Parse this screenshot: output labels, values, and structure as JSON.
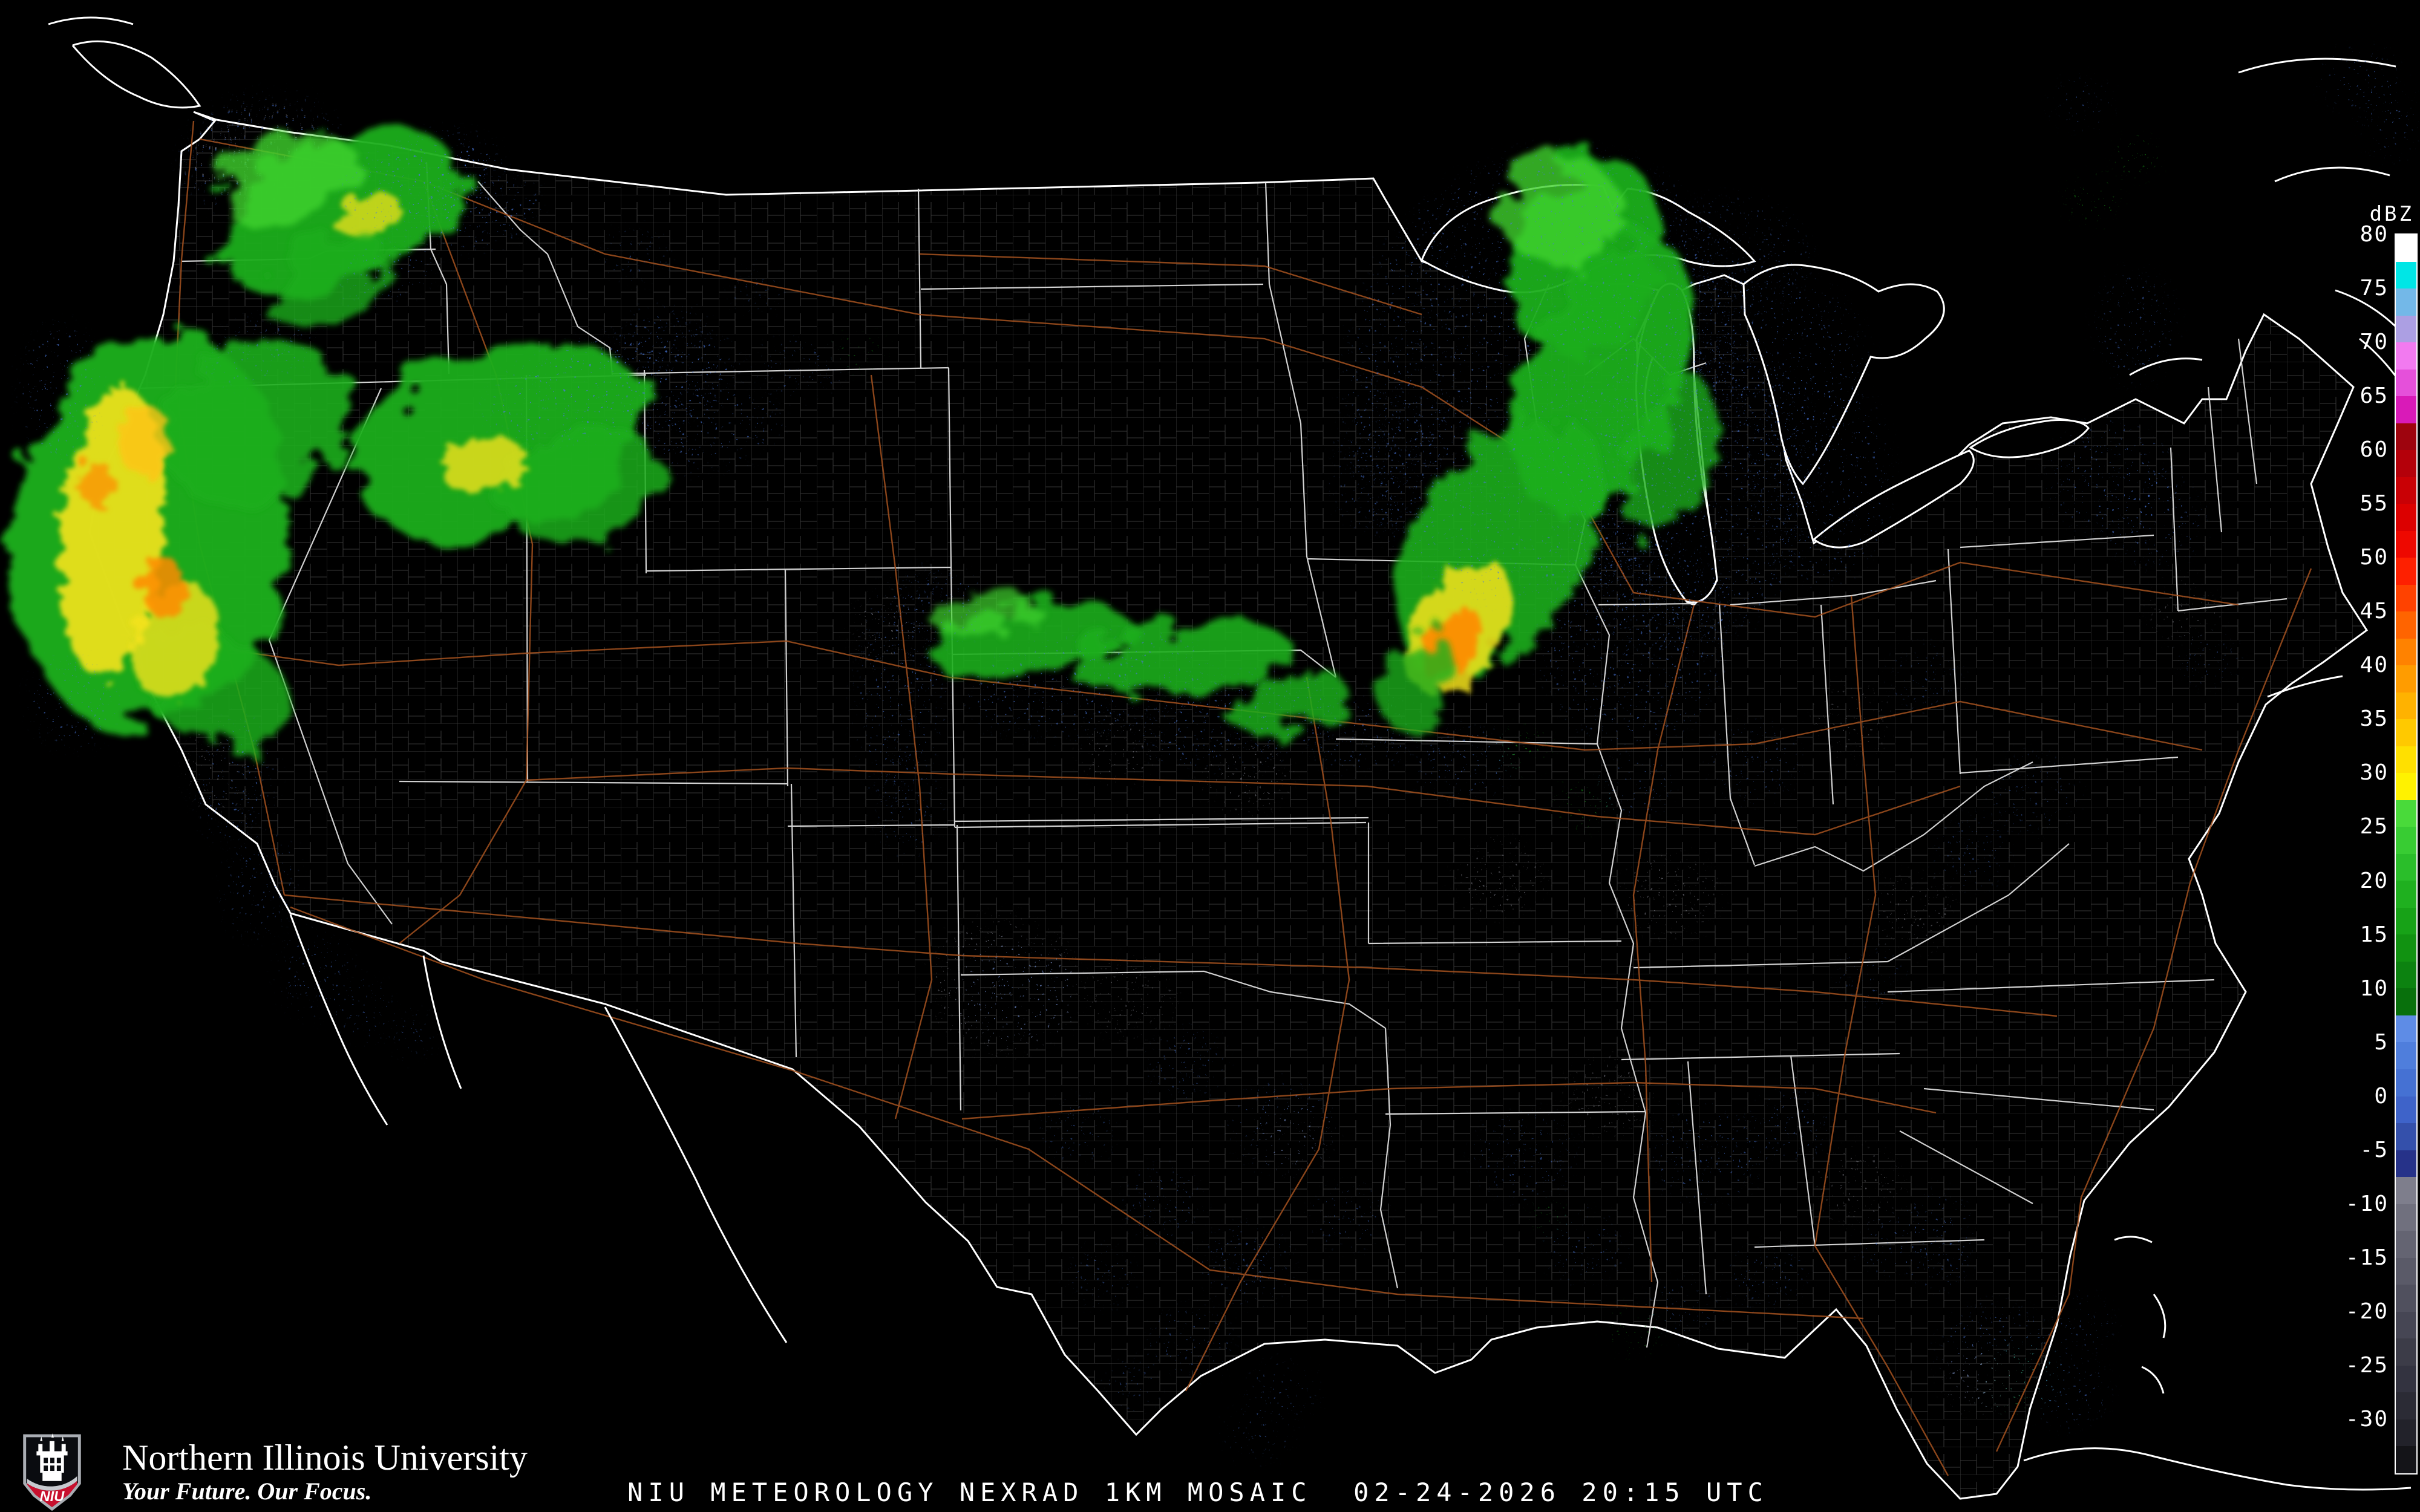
{
  "branding": {
    "university": "Northern Illinois University",
    "tagline": "Your Future. Our Focus.",
    "shield_letters": "NIU",
    "niu_red": "#c8102e",
    "shield_silver": "#a9adb3"
  },
  "caption": {
    "text": "NIU METEOROLOGY NEXRAD 1KM MOSAIC  02-24-2026 20:15 UTC"
  },
  "colorbar": {
    "title": "dBZ",
    "tick_labels": [
      "80",
      "75",
      "70",
      "65",
      "60",
      "55",
      "50",
      "45",
      "40",
      "35",
      "30",
      "25",
      "20",
      "15",
      "10",
      "5",
      "0",
      "-5",
      "-10",
      "-15",
      "-20",
      "-25",
      "-30"
    ],
    "segments": [
      "#ffffff",
      "#00e6e6",
      "#73b8e8",
      "#ac9fe3",
      "#f27af0",
      "#e550da",
      "#d91ab8",
      "#9e040e",
      "#b4000a",
      "#c90005",
      "#dc0000",
      "#ee0800",
      "#fe2000",
      "#ff4200",
      "#ff6400",
      "#ff8200",
      "#ff9c00",
      "#ffb200",
      "#ffc900",
      "#ffe000",
      "#fff200",
      "#49da3a",
      "#38cc33",
      "#2abe2a",
      "#1fb01f",
      "#17a217",
      "#119211",
      "#0c8210",
      "#08700c",
      "#5e8ce6",
      "#4f7edc",
      "#4571d3",
      "#3e63c9",
      "#3450ab",
      "#263289",
      "#7e7e8c",
      "#70707e",
      "#646472",
      "#5a5a68",
      "#50505e",
      "#464654",
      "#3c3c48",
      "#333340",
      "#2b2b35",
      "#22222a",
      "#141418"
    ]
  },
  "map": {
    "colors": {
      "coast": "#ffffff",
      "state": "#e3e3e3",
      "county": "#8b8b8b",
      "hwy": "#a3511f",
      "background": "#000000"
    },
    "palette": {
      "g": "#1fae1b",
      "bg": "#3fd32f",
      "dg": "#0d7d10",
      "y": "#f5e31c",
      "gd": "#ffc414",
      "o": "#ff8a00",
      "b": "#4a78de",
      "db": "#2c47ad",
      "lb": "#7fa5ec",
      "gy": "#8d8d99"
    },
    "echoes": [
      [
        420,
        250,
        110,
        70,
        -15,
        "gy",
        "sp",
        0.7
      ],
      [
        430,
        252,
        130,
        90,
        -15,
        "b",
        "sp",
        0.6
      ],
      [
        560,
        350,
        210,
        120,
        -25,
        "g",
        "fz",
        0.95
      ],
      [
        480,
        300,
        120,
        70,
        -20,
        "bg",
        "fz",
        0.8
      ],
      [
        610,
        355,
        55,
        32,
        -20,
        "y",
        "fz2",
        0.75
      ],
      [
        700,
        300,
        130,
        70,
        -15,
        "b",
        "sp",
        0.8
      ],
      [
        790,
        350,
        100,
        55,
        -10,
        "b",
        "sp",
        0.7
      ],
      [
        540,
        460,
        110,
        60,
        -30,
        "g",
        "fz",
        0.8
      ],
      [
        640,
        450,
        80,
        45,
        -20,
        "b",
        "sp",
        0.6
      ],
      [
        250,
        880,
        230,
        330,
        8,
        "g",
        "fz",
        0.97
      ],
      [
        420,
        700,
        160,
        130,
        -30,
        "g",
        "fz",
        0.9
      ],
      [
        350,
        1130,
        130,
        90,
        20,
        "g",
        "fz",
        0.85
      ],
      [
        185,
        880,
        85,
        240,
        5,
        "y",
        "fz2",
        0.9
      ],
      [
        290,
        1060,
        70,
        100,
        15,
        "y",
        "fz2",
        0.8
      ],
      [
        240,
        730,
        45,
        60,
        0,
        "gd",
        "fz2",
        0.8
      ],
      [
        270,
        970,
        35,
        50,
        0,
        "o",
        "fz2",
        0.85
      ],
      [
        160,
        800,
        28,
        40,
        0,
        "o",
        "fz2",
        0.7
      ],
      [
        100,
        650,
        60,
        110,
        0,
        "b",
        "sp",
        0.6
      ],
      [
        120,
        1160,
        70,
        70,
        0,
        "b",
        "sp",
        0.55
      ],
      [
        430,
        580,
        90,
        50,
        -20,
        "b",
        "sp",
        0.5
      ],
      [
        390,
        1290,
        60,
        100,
        10,
        "b",
        "sp",
        0.55
      ],
      [
        360,
        1270,
        50,
        70,
        0,
        "gy",
        "sp",
        0.5
      ],
      [
        430,
        1460,
        55,
        85,
        10,
        "b",
        "sp",
        0.5
      ],
      [
        520,
        1610,
        55,
        65,
        0,
        "b",
        "sp",
        0.5
      ],
      [
        600,
        1670,
        45,
        45,
        0,
        "b",
        "sp",
        0.45
      ],
      [
        680,
        1710,
        35,
        35,
        0,
        "b",
        "sp",
        0.4
      ],
      [
        830,
        730,
        250,
        160,
        -18,
        "g",
        "fz",
        0.95
      ],
      [
        960,
        800,
        140,
        90,
        -15,
        "g",
        "fz",
        0.85
      ],
      [
        800,
        770,
        70,
        45,
        -15,
        "y",
        "fz2",
        0.8
      ],
      [
        1010,
        640,
        210,
        80,
        -12,
        "b",
        "sp",
        0.75
      ],
      [
        1170,
        710,
        120,
        60,
        -10,
        "b",
        "sp",
        0.6
      ],
      [
        1090,
        560,
        80,
        45,
        -10,
        "b",
        "sp",
        0.5
      ],
      [
        1320,
        610,
        70,
        45,
        0,
        "b",
        "sp",
        0.45
      ],
      [
        1420,
        580,
        40,
        25,
        0,
        "g",
        "sp",
        0.5
      ],
      [
        1050,
        420,
        50,
        40,
        0,
        "b",
        "sp",
        0.4
      ],
      [
        1250,
        480,
        40,
        30,
        0,
        "b",
        "sp",
        0.35
      ],
      [
        1490,
        1130,
        70,
        190,
        5,
        "b",
        "sp",
        0.55
      ],
      [
        1470,
        1040,
        60,
        60,
        0,
        "gy",
        "sp",
        0.5
      ],
      [
        1500,
        1330,
        50,
        80,
        0,
        "b",
        "sp",
        0.45
      ],
      [
        1700,
        1060,
        170,
        60,
        -8,
        "g",
        "fz",
        0.9
      ],
      [
        1620,
        1010,
        80,
        40,
        -10,
        "bg",
        "fz",
        0.7
      ],
      [
        1950,
        1090,
        180,
        60,
        -8,
        "g",
        "fz",
        0.9
      ],
      [
        2130,
        1160,
        100,
        50,
        -15,
        "g",
        "fz",
        0.85
      ],
      [
        1800,
        1130,
        200,
        80,
        -8,
        "b",
        "sp",
        0.6
      ],
      [
        2050,
        1190,
        170,
        70,
        -10,
        "b",
        "sp",
        0.6
      ],
      [
        2260,
        1210,
        90,
        55,
        -15,
        "b",
        "sp",
        0.55
      ],
      [
        1560,
        1000,
        70,
        60,
        0,
        "b",
        "sp",
        0.5
      ],
      [
        1850,
        1240,
        60,
        60,
        0,
        "gy",
        "sp",
        0.5
      ],
      [
        2060,
        1280,
        70,
        60,
        0,
        "gy",
        "sp",
        0.55
      ],
      [
        2620,
        430,
        120,
        170,
        20,
        "g",
        "fz",
        0.95
      ],
      [
        2650,
        620,
        130,
        240,
        22,
        "g",
        "fz",
        0.95
      ],
      [
        2480,
        900,
        140,
        230,
        33,
        "g",
        "fz",
        0.9
      ],
      [
        2580,
        350,
        100,
        90,
        0,
        "bg",
        "fz",
        0.8
      ],
      [
        2760,
        760,
        70,
        140,
        18,
        "g",
        "fz",
        0.8
      ],
      [
        2410,
        1040,
        75,
        120,
        32,
        "y",
        "fz2",
        0.85
      ],
      [
        2400,
        1065,
        40,
        65,
        32,
        "o",
        "fz2",
        0.9
      ],
      [
        2340,
        1130,
        60,
        80,
        30,
        "g",
        "fz",
        0.8
      ],
      [
        2550,
        620,
        320,
        380,
        20,
        "b",
        "sp",
        0.55
      ],
      [
        2800,
        820,
        190,
        260,
        15,
        "b",
        "sp",
        0.6
      ],
      [
        2700,
        1060,
        150,
        170,
        10,
        "b",
        "sp",
        0.55
      ],
      [
        2920,
        580,
        160,
        130,
        0,
        "b",
        "sp",
        0.5
      ],
      [
        3010,
        790,
        110,
        170,
        0,
        "b",
        "sp",
        0.5
      ],
      [
        2300,
        760,
        90,
        120,
        25,
        "b",
        "sp",
        0.5
      ],
      [
        2870,
        420,
        120,
        90,
        10,
        "b",
        "sp",
        0.45
      ],
      [
        2420,
        1260,
        80,
        55,
        0,
        "b",
        "sp",
        0.5
      ],
      [
        2520,
        1240,
        40,
        30,
        0,
        "g",
        "sp",
        0.6
      ],
      [
        2620,
        1330,
        45,
        35,
        0,
        "g",
        "sp",
        0.55
      ],
      [
        2700,
        1300,
        60,
        45,
        0,
        "b",
        "sp",
        0.45
      ],
      [
        2480,
        1450,
        70,
        60,
        0,
        "gy",
        "sp",
        0.5
      ],
      [
        2760,
        1480,
        75,
        65,
        0,
        "gy",
        "sp",
        0.5
      ],
      [
        2900,
        1260,
        70,
        60,
        0,
        "b",
        "sp",
        0.45
      ],
      [
        3060,
        1190,
        60,
        55,
        0,
        "gy",
        "sp",
        0.45
      ],
      [
        3180,
        1120,
        55,
        50,
        0,
        "b",
        "sp",
        0.4
      ],
      [
        1660,
        1630,
        120,
        110,
        0,
        "gy",
        "sp",
        0.55
      ],
      [
        1680,
        1640,
        90,
        80,
        0,
        "b",
        "sp",
        0.4
      ],
      [
        1870,
        1650,
        70,
        60,
        0,
        "gy",
        "sp",
        0.5
      ],
      [
        1960,
        1760,
        60,
        55,
        0,
        "b",
        "sp",
        0.45
      ],
      [
        1780,
        1870,
        55,
        50,
        0,
        "b",
        "sp",
        0.4
      ],
      [
        2120,
        1860,
        80,
        70,
        0,
        "b",
        "sp",
        0.5
      ],
      [
        2140,
        1880,
        60,
        50,
        0,
        "gy",
        "sp",
        0.4
      ],
      [
        1920,
        1990,
        60,
        55,
        0,
        "b",
        "sp",
        0.45
      ],
      [
        2060,
        2090,
        70,
        60,
        0,
        "b",
        "sp",
        0.5
      ],
      [
        1820,
        2110,
        50,
        45,
        0,
        "b",
        "sp",
        0.4
      ],
      [
        2230,
        2010,
        60,
        50,
        0,
        "b",
        "sp",
        0.4
      ],
      [
        1970,
        2220,
        65,
        55,
        0,
        "b",
        "sp",
        0.45
      ],
      [
        2120,
        2300,
        55,
        45,
        0,
        "b",
        "sp",
        0.4
      ],
      [
        1870,
        2290,
        45,
        40,
        0,
        "b",
        "sp",
        0.35
      ],
      [
        2080,
        2370,
        50,
        40,
        0,
        "b",
        "sp",
        0.4
      ],
      [
        2520,
        1910,
        80,
        70,
        0,
        "b",
        "sp",
        0.5
      ],
      [
        2660,
        1810,
        70,
        60,
        0,
        "gy",
        "sp",
        0.45
      ],
      [
        2820,
        1910,
        90,
        75,
        0,
        "b",
        "sp",
        0.5
      ],
      [
        2960,
        1860,
        60,
        55,
        0,
        "b",
        "sp",
        0.45
      ],
      [
        3070,
        1960,
        70,
        60,
        0,
        "gy",
        "sp",
        0.45
      ],
      [
        2620,
        2060,
        60,
        55,
        0,
        "b",
        "sp",
        0.45
      ],
      [
        2560,
        2010,
        25,
        20,
        0,
        "g",
        "sp",
        0.6
      ],
      [
        2780,
        2160,
        55,
        45,
        0,
        "b",
        "sp",
        0.4
      ],
      [
        2920,
        2110,
        60,
        50,
        0,
        "b",
        "sp",
        0.45
      ],
      [
        3120,
        2060,
        50,
        45,
        0,
        "b",
        "sp",
        0.4
      ],
      [
        2700,
        2200,
        40,
        35,
        0,
        "g",
        "sp",
        0.45
      ],
      [
        3300,
        2240,
        90,
        80,
        0,
        "b",
        "sp",
        0.55
      ],
      [
        3340,
        2280,
        60,
        55,
        0,
        "g",
        "sp",
        0.4
      ],
      [
        3420,
        2300,
        60,
        55,
        0,
        "b",
        "sp",
        0.5
      ],
      [
        3270,
        2280,
        55,
        50,
        0,
        "gy",
        "sp",
        0.5
      ],
      [
        3200,
        2050,
        60,
        80,
        0,
        "b",
        "sp",
        0.45
      ],
      [
        3440,
        2190,
        50,
        45,
        0,
        "b",
        "sp",
        0.4
      ],
      [
        3160,
        1510,
        70,
        60,
        0,
        "gy",
        "sp",
        0.45
      ],
      [
        3260,
        1410,
        60,
        55,
        0,
        "b",
        "sp",
        0.4
      ],
      [
        3360,
        1310,
        70,
        60,
        0,
        "b",
        "sp",
        0.4
      ],
      [
        3090,
        1620,
        55,
        50,
        0,
        "b",
        "sp",
        0.35
      ],
      [
        3490,
        790,
        100,
        90,
        0,
        "b",
        "sp",
        0.5
      ],
      [
        3560,
        860,
        80,
        70,
        0,
        "b",
        "sp",
        0.45
      ],
      [
        3530,
        540,
        60,
        90,
        0,
        "b",
        "sp",
        0.45
      ],
      [
        3610,
        1010,
        55,
        50,
        0,
        "gy",
        "sp",
        0.45
      ],
      [
        3650,
        1090,
        45,
        40,
        0,
        "b",
        "sp",
        0.4
      ],
      [
        3460,
        330,
        40,
        35,
        0,
        "g",
        "sp",
        0.5
      ],
      [
        3530,
        260,
        35,
        30,
        0,
        "g",
        "sp",
        0.5
      ],
      [
        3440,
        170,
        45,
        35,
        0,
        "b",
        "sp",
        0.45
      ],
      [
        3900,
        130,
        60,
        45,
        0,
        "b",
        "sp",
        0.5
      ],
      [
        3950,
        200,
        40,
        60,
        0,
        "b",
        "sp",
        0.45
      ]
    ]
  }
}
